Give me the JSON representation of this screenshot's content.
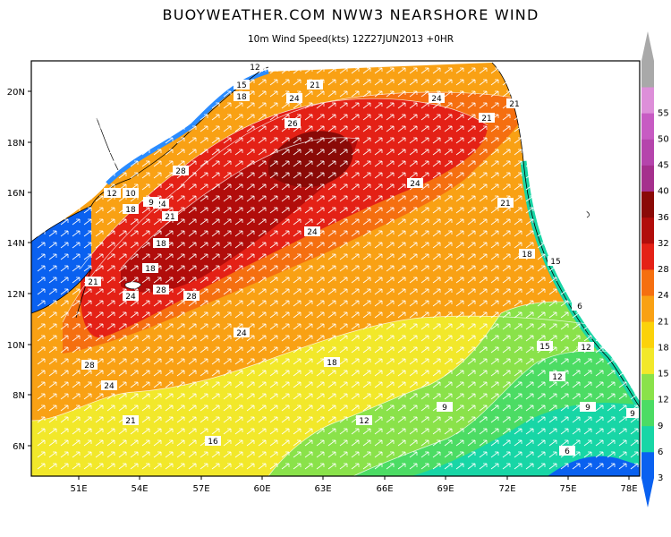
{
  "header": {
    "title": "BUOYWEATHER.COM NWW3 NEARSHORE WIND",
    "subtitle": "10m Wind Speed(kts) 12Z27JUN2013 +0HR"
  },
  "axes": {
    "lon_labels": [
      "51E",
      "54E",
      "57E",
      "60E",
      "63E",
      "66E",
      "69E",
      "72E",
      "75E",
      "78E"
    ],
    "lat_labels": [
      "6N",
      "8N",
      "10N",
      "12N",
      "14N",
      "16N",
      "18N",
      "20N"
    ]
  },
  "colorbar": {
    "labels": [
      "3",
      "6",
      "9",
      "12",
      "15",
      "18",
      "21",
      "24",
      "28",
      "32",
      "36",
      "40",
      "45",
      "50",
      "55"
    ],
    "colors": [
      "#0a61f0",
      "#18d6a6",
      "#4cdc64",
      "#8ae24a",
      "#f2e82a",
      "#fbd20a",
      "#f9a114",
      "#f56f10",
      "#e42116",
      "#b10d0b",
      "#8a0a07",
      "#a5308d",
      "#b545ac",
      "#c75bc3",
      "#dd8fd9",
      "#a9a9a9"
    ]
  },
  "contour_labels": [
    "12",
    "15",
    "18",
    "21",
    "24",
    "24",
    "21",
    "21",
    "26",
    "28",
    "24",
    "21",
    "18",
    "12",
    "10",
    "18",
    "24",
    "21",
    "18",
    "18",
    "24",
    "28",
    "28",
    "24",
    "24",
    "28",
    "24",
    "21",
    "18",
    "16",
    "15",
    "12",
    "12",
    "9",
    "9",
    "6",
    "9",
    "6",
    "12",
    "15",
    "21",
    "12",
    "9"
  ],
  "map_colors": {
    "land": "#ffffff",
    "sea_low": "#0a61f0",
    "arrow": "#ffffff",
    "coastline": "#000000"
  }
}
